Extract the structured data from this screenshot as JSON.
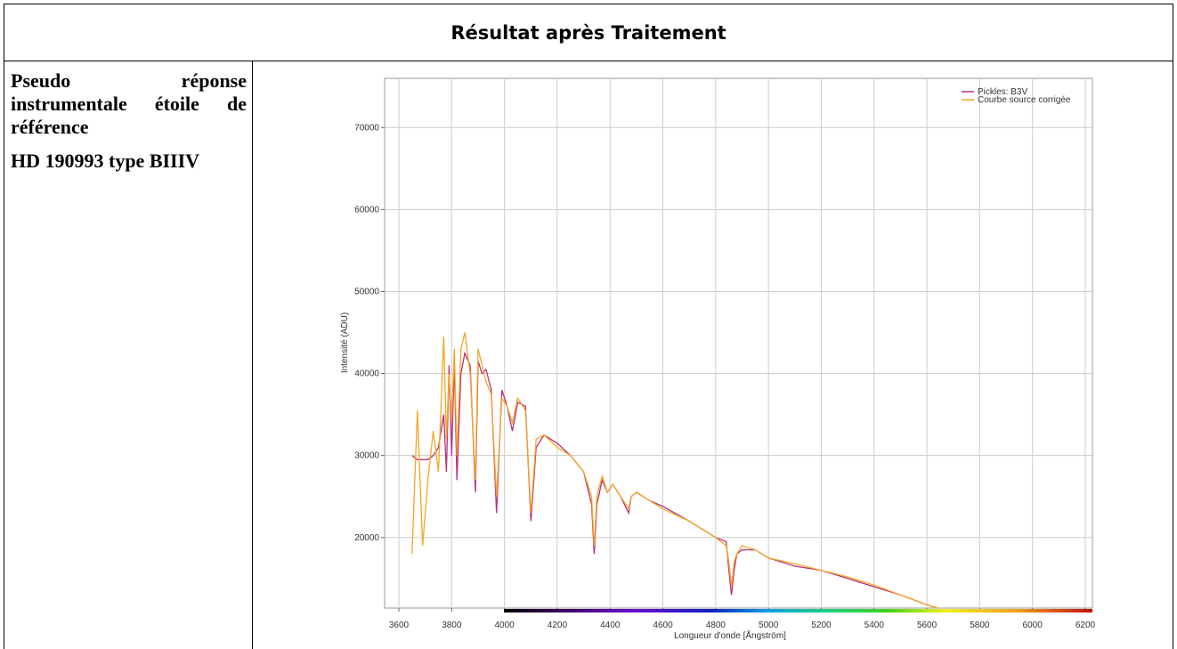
{
  "header": {
    "title": "Résultat après Traitement"
  },
  "left_cell": {
    "description": "Pseudo réponse instrumentale étoile de référence",
    "star": "HD 190993 type BIIIV"
  },
  "chart_data": {
    "type": "line",
    "xlabel": "Longueur d'onde [Ångström]",
    "ylabel": "Intensité (ADU)",
    "x": [
      3650,
      3670,
      3690,
      3710,
      3730,
      3750,
      3770,
      3780,
      3790,
      3800,
      3810,
      3820,
      3835,
      3850,
      3870,
      3890,
      3900,
      3915,
      3930,
      3950,
      3970,
      3990,
      4010,
      4030,
      4050,
      4080,
      4100,
      4120,
      4150,
      4200,
      4250,
      4300,
      4330,
      4340,
      4350,
      4370,
      4390,
      4410,
      4440,
      4470,
      4480,
      4500,
      4550,
      4600,
      4700,
      4800,
      4840,
      4850,
      4860,
      4870,
      4880,
      4900,
      4950,
      5000,
      5100,
      5200,
      5300,
      5400,
      5500,
      5600,
      5640
    ],
    "series": [
      {
        "name": "Pickles: B3V",
        "color": "#b5307f",
        "values": [
          30000,
          29500,
          29500,
          29500,
          30000,
          31000,
          35000,
          28000,
          41000,
          30000,
          41500,
          27000,
          40000,
          42500,
          41000,
          25500,
          41500,
          40000,
          40500,
          38000,
          23000,
          38000,
          36000,
          33000,
          36500,
          36000,
          22000,
          31000,
          32500,
          31500,
          30000,
          28000,
          24000,
          18000,
          24000,
          27000,
          25500,
          26500,
          25000,
          23000,
          25000,
          25500,
          24500,
          23800,
          22000,
          20000,
          19500,
          16000,
          13000,
          16000,
          18000,
          18500,
          18500,
          17500,
          16500,
          16000,
          15000,
          14000,
          13000,
          11800,
          11400
        ]
      },
      {
        "name": "Courbe source corrigée",
        "color": "#f5a623",
        "values": [
          18000,
          35500,
          19000,
          27000,
          33000,
          28000,
          44500,
          32000,
          40000,
          34000,
          43000,
          30000,
          43000,
          45000,
          40000,
          27000,
          43000,
          41000,
          39000,
          37500,
          25000,
          37000,
          36000,
          34000,
          37000,
          35500,
          23000,
          32000,
          32500,
          31000,
          30000,
          28000,
          25000,
          19000,
          25000,
          27500,
          25500,
          26500,
          25000,
          23500,
          25000,
          25500,
          24500,
          23500,
          22000,
          20000,
          19000,
          17000,
          14000,
          17000,
          18000,
          19000,
          18500,
          17500,
          16800,
          16000,
          15200,
          14200,
          13000,
          11800,
          11400
        ]
      }
    ],
    "xlim": [
      3546,
      6227
    ],
    "ylim": [
      11400,
      76000
    ],
    "xticks": [
      3600,
      3800,
      4000,
      4200,
      4400,
      4600,
      4800,
      5000,
      5200,
      5400,
      5600,
      5800,
      6000,
      6200
    ],
    "yticks": [
      20000,
      30000,
      40000,
      50000,
      60000,
      70000
    ],
    "grid": true,
    "legend": "upper right"
  }
}
